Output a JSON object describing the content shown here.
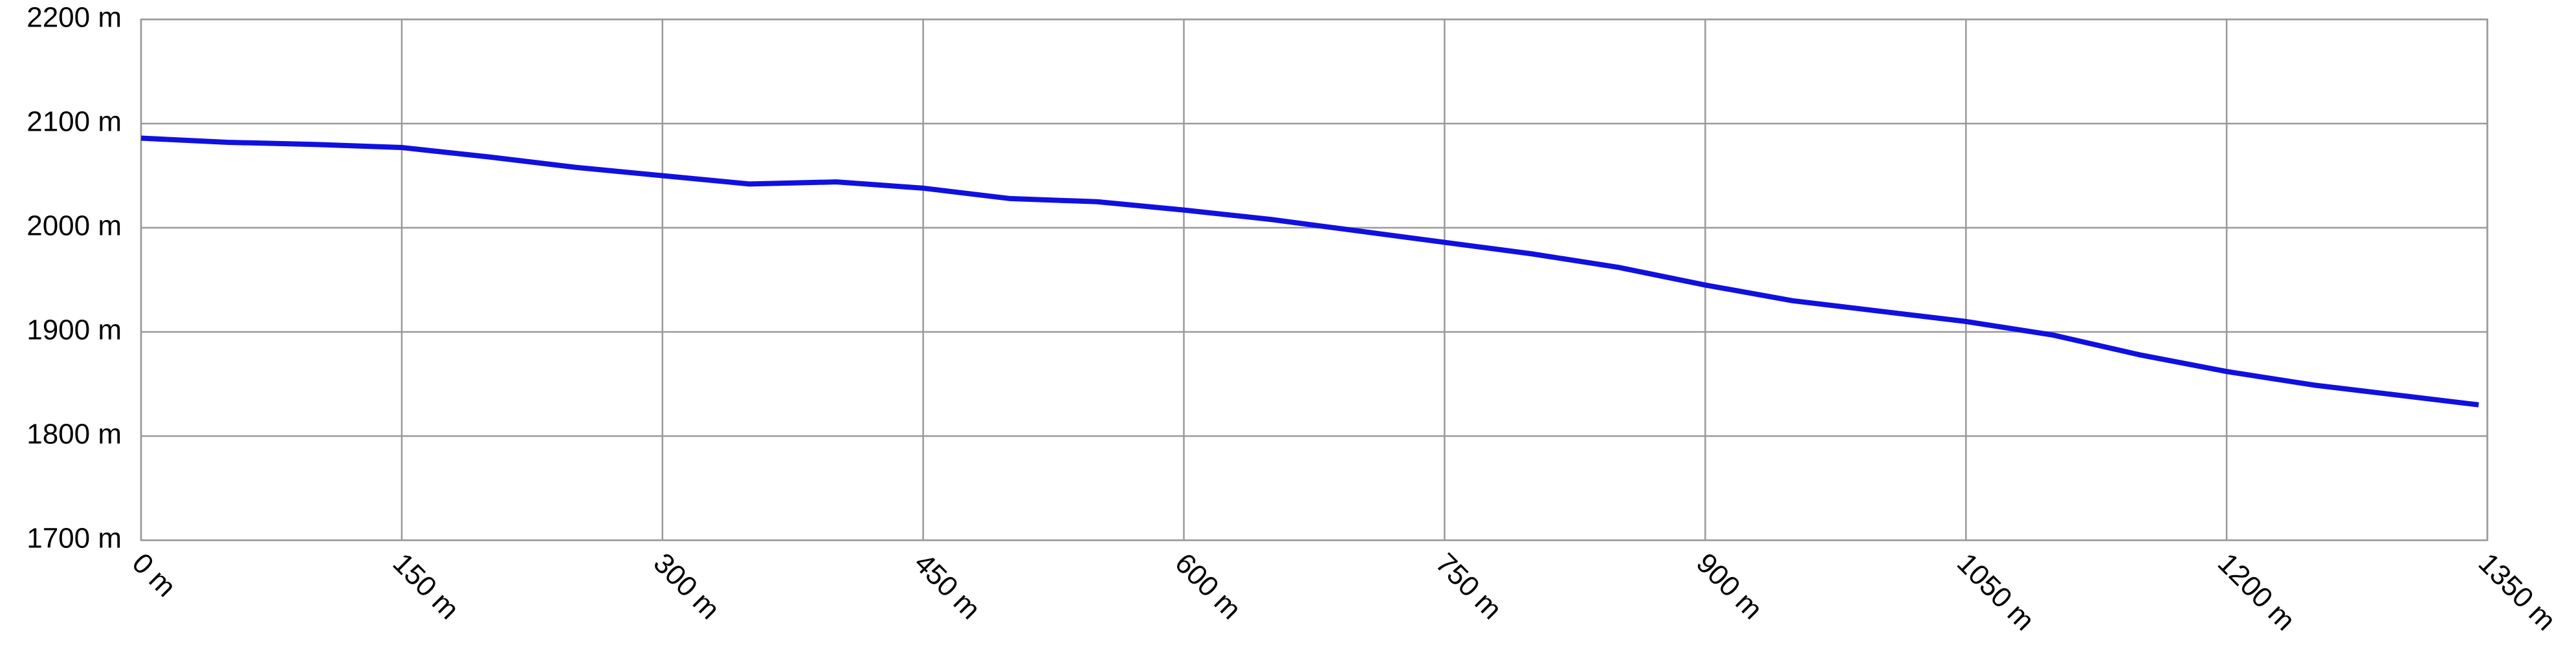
{
  "chart_data": {
    "type": "line",
    "x": [
      0,
      50,
      100,
      150,
      200,
      250,
      300,
      350,
      400,
      450,
      500,
      550,
      600,
      650,
      700,
      750,
      800,
      850,
      900,
      950,
      1000,
      1050,
      1100,
      1150,
      1200,
      1250,
      1300,
      1345
    ],
    "series": [
      {
        "color": "#1010e0",
        "values": [
          2086,
          2082,
          2080,
          2077,
          2068,
          2058,
          2050,
          2042,
          2044,
          2038,
          2028,
          2025,
          2017,
          2008,
          1997,
          1986,
          1975,
          1962,
          1945,
          1930,
          1920,
          1910,
          1897,
          1878,
          1862,
          1849,
          1839,
          1830
        ]
      }
    ],
    "xlim": [
      0,
      1350
    ],
    "xticks": [
      {
        "value": 0,
        "label": "0 m"
      },
      {
        "value": 150,
        "label": "150 m"
      },
      {
        "value": 300,
        "label": "300 m"
      },
      {
        "value": 450,
        "label": "450 m"
      },
      {
        "value": 600,
        "label": "600 m"
      },
      {
        "value": 750,
        "label": "750 m"
      },
      {
        "value": 900,
        "label": "900 m"
      },
      {
        "value": 1050,
        "label": "1050 m"
      },
      {
        "value": 1200,
        "label": "1200 m"
      },
      {
        "value": 1350,
        "label": "1350 m"
      }
    ],
    "ylim": [
      1700,
      2200
    ],
    "yticks": [
      {
        "value": 1700,
        "label": "1700 m"
      },
      {
        "value": 1800,
        "label": "1800 m"
      },
      {
        "value": 1900,
        "label": "1900 m"
      },
      {
        "value": 2000,
        "label": "2000 m"
      },
      {
        "value": 2100,
        "label": "2100 m"
      },
      {
        "value": 2200,
        "label": "2200 m"
      }
    ],
    "grid": true
  }
}
